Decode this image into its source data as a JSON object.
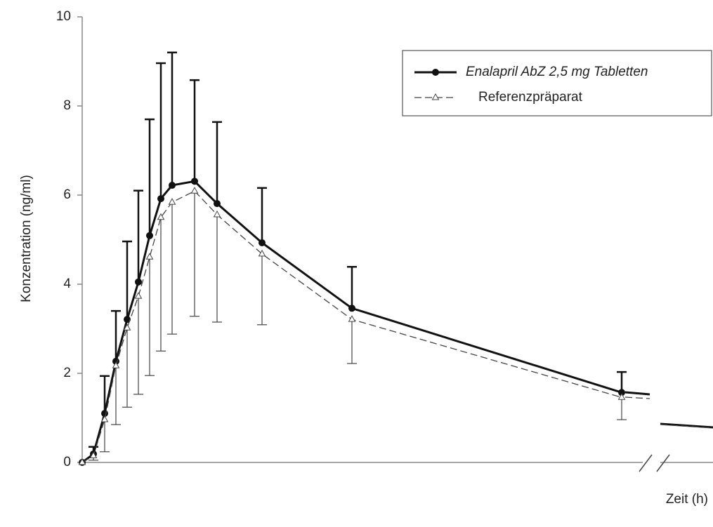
{
  "chart_data": {
    "type": "line",
    "ylabel": "Konzentration (ng/ml)",
    "xlabel": "Zeit (h)",
    "x": [
      0,
      0.25,
      0.5,
      0.75,
      1,
      1.25,
      1.5,
      1.75,
      2,
      2.5,
      3,
      4,
      6,
      12
    ],
    "xlim": [
      0,
      14
    ],
    "ylim": [
      0,
      10
    ],
    "yticks": [
      0,
      2,
      4,
      6,
      8,
      10
    ],
    "legend": "upper right",
    "series": [
      {
        "name": "Enalapril AbZ 2,5 mg Tabletten",
        "color": "#111111",
        "values": [
          0,
          0.19,
          1.1,
          2.27,
          3.21,
          4.05,
          5.09,
          5.92,
          6.22,
          6.31,
          5.81,
          4.93,
          3.46,
          1.57
        ],
        "errors": [
          0,
          0.16,
          0.84,
          1.13,
          1.75,
          2.05,
          2.61,
          3.04,
          2.98,
          2.27,
          1.83,
          1.23,
          0.93,
          0.46
        ]
      },
      {
        "name": "Referenzpräparat",
        "color": "#444444",
        "values": [
          0,
          0.15,
          0.96,
          2.17,
          3.02,
          3.73,
          4.61,
          5.5,
          5.84,
          6.09,
          5.56,
          4.68,
          3.21,
          1.46
        ],
        "errors": [
          0,
          0.1,
          0.72,
          1.32,
          1.78,
          2.2,
          2.66,
          3.0,
          2.96,
          2.81,
          2.41,
          1.59,
          0.99,
          0.5
        ]
      }
    ]
  }
}
